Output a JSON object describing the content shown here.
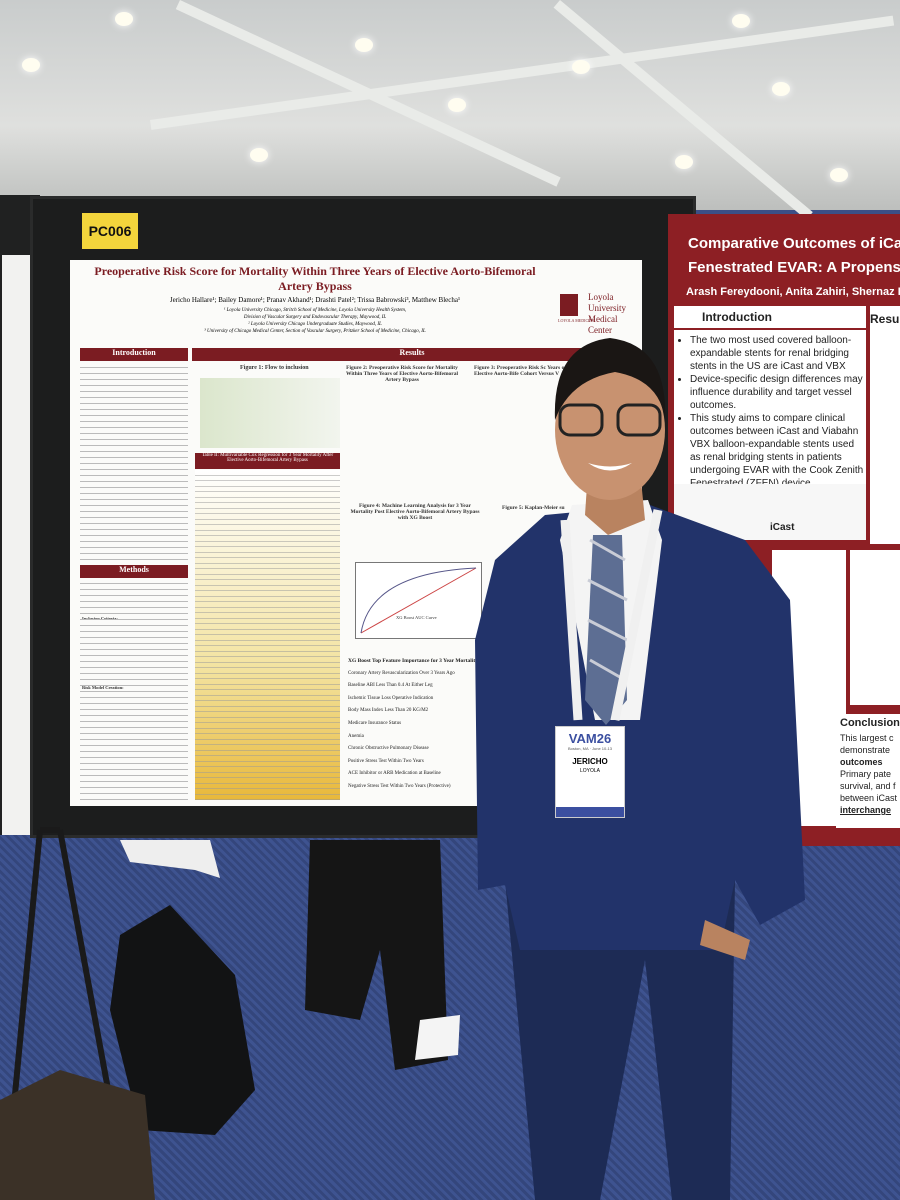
{
  "left_poster": {
    "board_id": "PC006",
    "title": "Preoperative Risk Score for Mortality Within Three Years of Elective Aorto-Bifemoral Artery Bypass",
    "authors": "Jericho Hallare¹; Bailey Damore¹; Pranav Akhand¹; Drashti Patel²; Trissa Babrowski³, Matthew Blecha¹",
    "affiliations": [
      "¹ Loyola University Chicago, Stritch School of Medicine, Loyola University Health System,",
      "Division of Vascular Surgery and Endovascular Therapy, Maywood, IL",
      "² Loyola University Chicago Undergraduate Studies, Maywood, IL",
      "³ University of Chicago Medical Center, Section of Vascular Surgery, Pritzker School of Medicine, Chicago, IL"
    ],
    "logo_top": "LOYOLA MEDICINE",
    "logo_name": "Loyola University Medical Center",
    "introduction": "Introduction",
    "results": "Results",
    "methods": "Methods",
    "inclusion_criteria": "Inclusion Criteria:",
    "risk_model_creation": "Risk Model Creation:",
    "figure1_title": "Figure 1: Flow to inclusion",
    "figure2_title": "Figure 2: Preoperative Risk Score for Mortality Within Three Years of Elective Aorto-Bifemoral Artery Bypass",
    "figure3_title": "Figure 3: Preoperative Risk Sc Years of Elective Aorto-Bife Cohort Versus V",
    "table_title": "Table II: Multivariable Cox Regression for 3 Year Mortality After Elective Aorto-Bifemoral Artery Bypass",
    "figure4_title": "Figure 4: Machine Learning Analysis for 3 Year Mortality Post Elective Aorto-Bifemoral Artery Bypass with XG Boost",
    "figure5_title": "Figure 5: Kaplan-Meier su",
    "auc_label": "XG Boost AUC Curve",
    "feature_title": "XG Boost Top Feature Importance for 3 Year Mortality",
    "features": [
      "Coronary Artery Revascularization Over 3 Years Ago",
      "Baseline ABI Less Than 0.4 At Either Leg",
      "Ischemic Tissue Loss Operative Indication",
      "Body Mass Index Less Than 20 KG/M2",
      "Medicare Insurance Status",
      "Anemia",
      "Chronic Obstructive Pulmonary Disease",
      "Positive Stress Test Within Two Years",
      "ACE Inhibitor or ARB Medication at Baseline",
      "Negative Stress Test Within Two Years (Protective)"
    ]
  },
  "right_poster": {
    "title": "Comparative Outcomes of iCast",
    "subtitle": "Fenestrated EVAR: A Propensi",
    "authors": "Arash Fereydooni, Anita Zahiri, Shernaz Dossa",
    "introduction": "Introduction",
    "bullets": [
      "The two most used covered balloon-expandable stents for renal bridging stents in the US are iCast and VBX",
      "Device-specific design differences may influence durability and target vessel outcomes.",
      "This study aims to compare clinical outcomes between iCast and Viabahn VBX balloon-expandable stents used as renal bridging stents in patients undergoing EVAR with the Cook Zenith Fenestrated (ZFEN) device."
    ],
    "device_label": "iCast",
    "results": "Resu",
    "conclusion": "Conclusion",
    "conclusion_lines": [
      "This largest c",
      "demonstrate",
      "outcomes",
      "Primary pate",
      "survival, and f",
      "between iCast",
      "interchange"
    ]
  },
  "badge": {
    "event": "VAM26",
    "place": "Boston, MA · June 10-13",
    "name": "JERICHO",
    "org": "LOYOLA"
  }
}
